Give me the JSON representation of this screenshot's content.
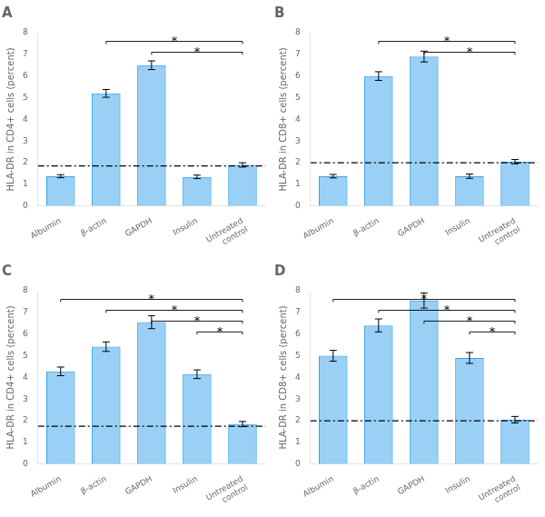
{
  "chart_data": [
    {
      "type": "bar",
      "title": "A",
      "ylabel": "HLA-DR in CD4+ cells (percent)",
      "categories": [
        "Albumin",
        "β-actin",
        "GAPDH",
        "Insulin",
        "Untreated\ncontrol"
      ],
      "values": [
        1.38,
        5.2,
        6.5,
        1.35,
        1.9
      ],
      "errors": [
        0.07,
        0.18,
        0.2,
        0.08,
        0.1
      ],
      "hline": 1.85,
      "ylim": [
        0,
        8
      ],
      "yticks": [
        0,
        1,
        2,
        3,
        4,
        5,
        6,
        7,
        8
      ],
      "grid": false,
      "annotations": [
        {
          "text": "*",
          "from": "β-actin",
          "to": "Untreated\ncontrol",
          "y": 7.6,
          "drop": 0.12
        },
        {
          "text": "*",
          "from": "GAPDH",
          "to": "Untreated\ncontrol",
          "y": 7.1,
          "drop": 0.12
        }
      ]
    },
    {
      "type": "bar",
      "title": "B",
      "ylabel": "HLA-DR in CD8+ cells (percent)",
      "categories": [
        "Albumin",
        "β-actin",
        "GAPDH",
        "Insulin",
        "Untreated\ncontrol"
      ],
      "values": [
        1.38,
        6.0,
        6.9,
        1.38,
        2.05
      ],
      "errors": [
        0.08,
        0.2,
        0.25,
        0.1,
        0.1
      ],
      "hline": 2.0,
      "ylim": [
        0,
        8
      ],
      "yticks": [
        0,
        1,
        2,
        3,
        4,
        5,
        6,
        7,
        8
      ],
      "grid": false,
      "annotations": [
        {
          "text": "*",
          "from": "β-actin",
          "to": "Untreated\ncontrol",
          "y": 7.6,
          "drop": 0.12
        },
        {
          "text": "*",
          "from": "GAPDH",
          "to": "Untreated\ncontrol",
          "y": 7.1,
          "drop": 0.12
        }
      ]
    },
    {
      "type": "bar",
      "title": "C",
      "ylabel": "HLA-DR in CD4+ cells (percent)",
      "categories": [
        "Albumin",
        "β-actin",
        "GAPDH",
        "Insulin",
        "Untreated\ncontrol"
      ],
      "values": [
        4.28,
        5.42,
        6.55,
        4.15,
        1.85
      ],
      "errors": [
        0.2,
        0.22,
        0.3,
        0.2,
        0.12
      ],
      "hline": 1.75,
      "ylim": [
        0,
        8
      ],
      "yticks": [
        0,
        1,
        2,
        3,
        4,
        5,
        6,
        7,
        8
      ],
      "grid": false,
      "annotations": [
        {
          "text": "*",
          "from": "Albumin",
          "to": "Untreated\ncontrol",
          "y": 7.6,
          "drop": 0.12
        },
        {
          "text": "*",
          "from": "β-actin",
          "to": "Untreated\ncontrol",
          "y": 7.1,
          "drop": 0.12
        },
        {
          "text": "*",
          "from": "GAPDH",
          "to": "Untreated\ncontrol",
          "y": 6.6,
          "drop": 0.12
        },
        {
          "text": "*",
          "from": "Insulin",
          "to": "Untreated\ncontrol",
          "y": 6.1,
          "drop": 0.12
        }
      ]
    },
    {
      "type": "bar",
      "title": "D",
      "ylabel": "HLA-DR in CD8+ cells (percent)",
      "categories": [
        "Albumin",
        "β-actin",
        "GAPDH",
        "Insulin",
        "Untreated\ncontrol"
      ],
      "values": [
        5.0,
        6.4,
        7.55,
        4.9,
        2.05
      ],
      "errors": [
        0.25,
        0.3,
        0.35,
        0.25,
        0.15
      ],
      "hline": 2.0,
      "ylim": [
        0,
        8
      ],
      "yticks": [
        0,
        1,
        2,
        3,
        4,
        5,
        6,
        7,
        8
      ],
      "grid": false,
      "annotations": [
        {
          "text": "*",
          "from": "Albumin",
          "to": "Untreated\ncontrol",
          "y": 7.6,
          "drop": 0.12
        },
        {
          "text": "*",
          "from": "β-actin",
          "to": "Untreated\ncontrol",
          "y": 7.1,
          "drop": 0.12
        },
        {
          "text": "*",
          "from": "GAPDH",
          "to": "Untreated\ncontrol",
          "y": 6.6,
          "drop": 0.12
        },
        {
          "text": "*",
          "from": "Insulin",
          "to": "Untreated\ncontrol",
          "y": 6.1,
          "drop": 0.12
        }
      ]
    }
  ]
}
